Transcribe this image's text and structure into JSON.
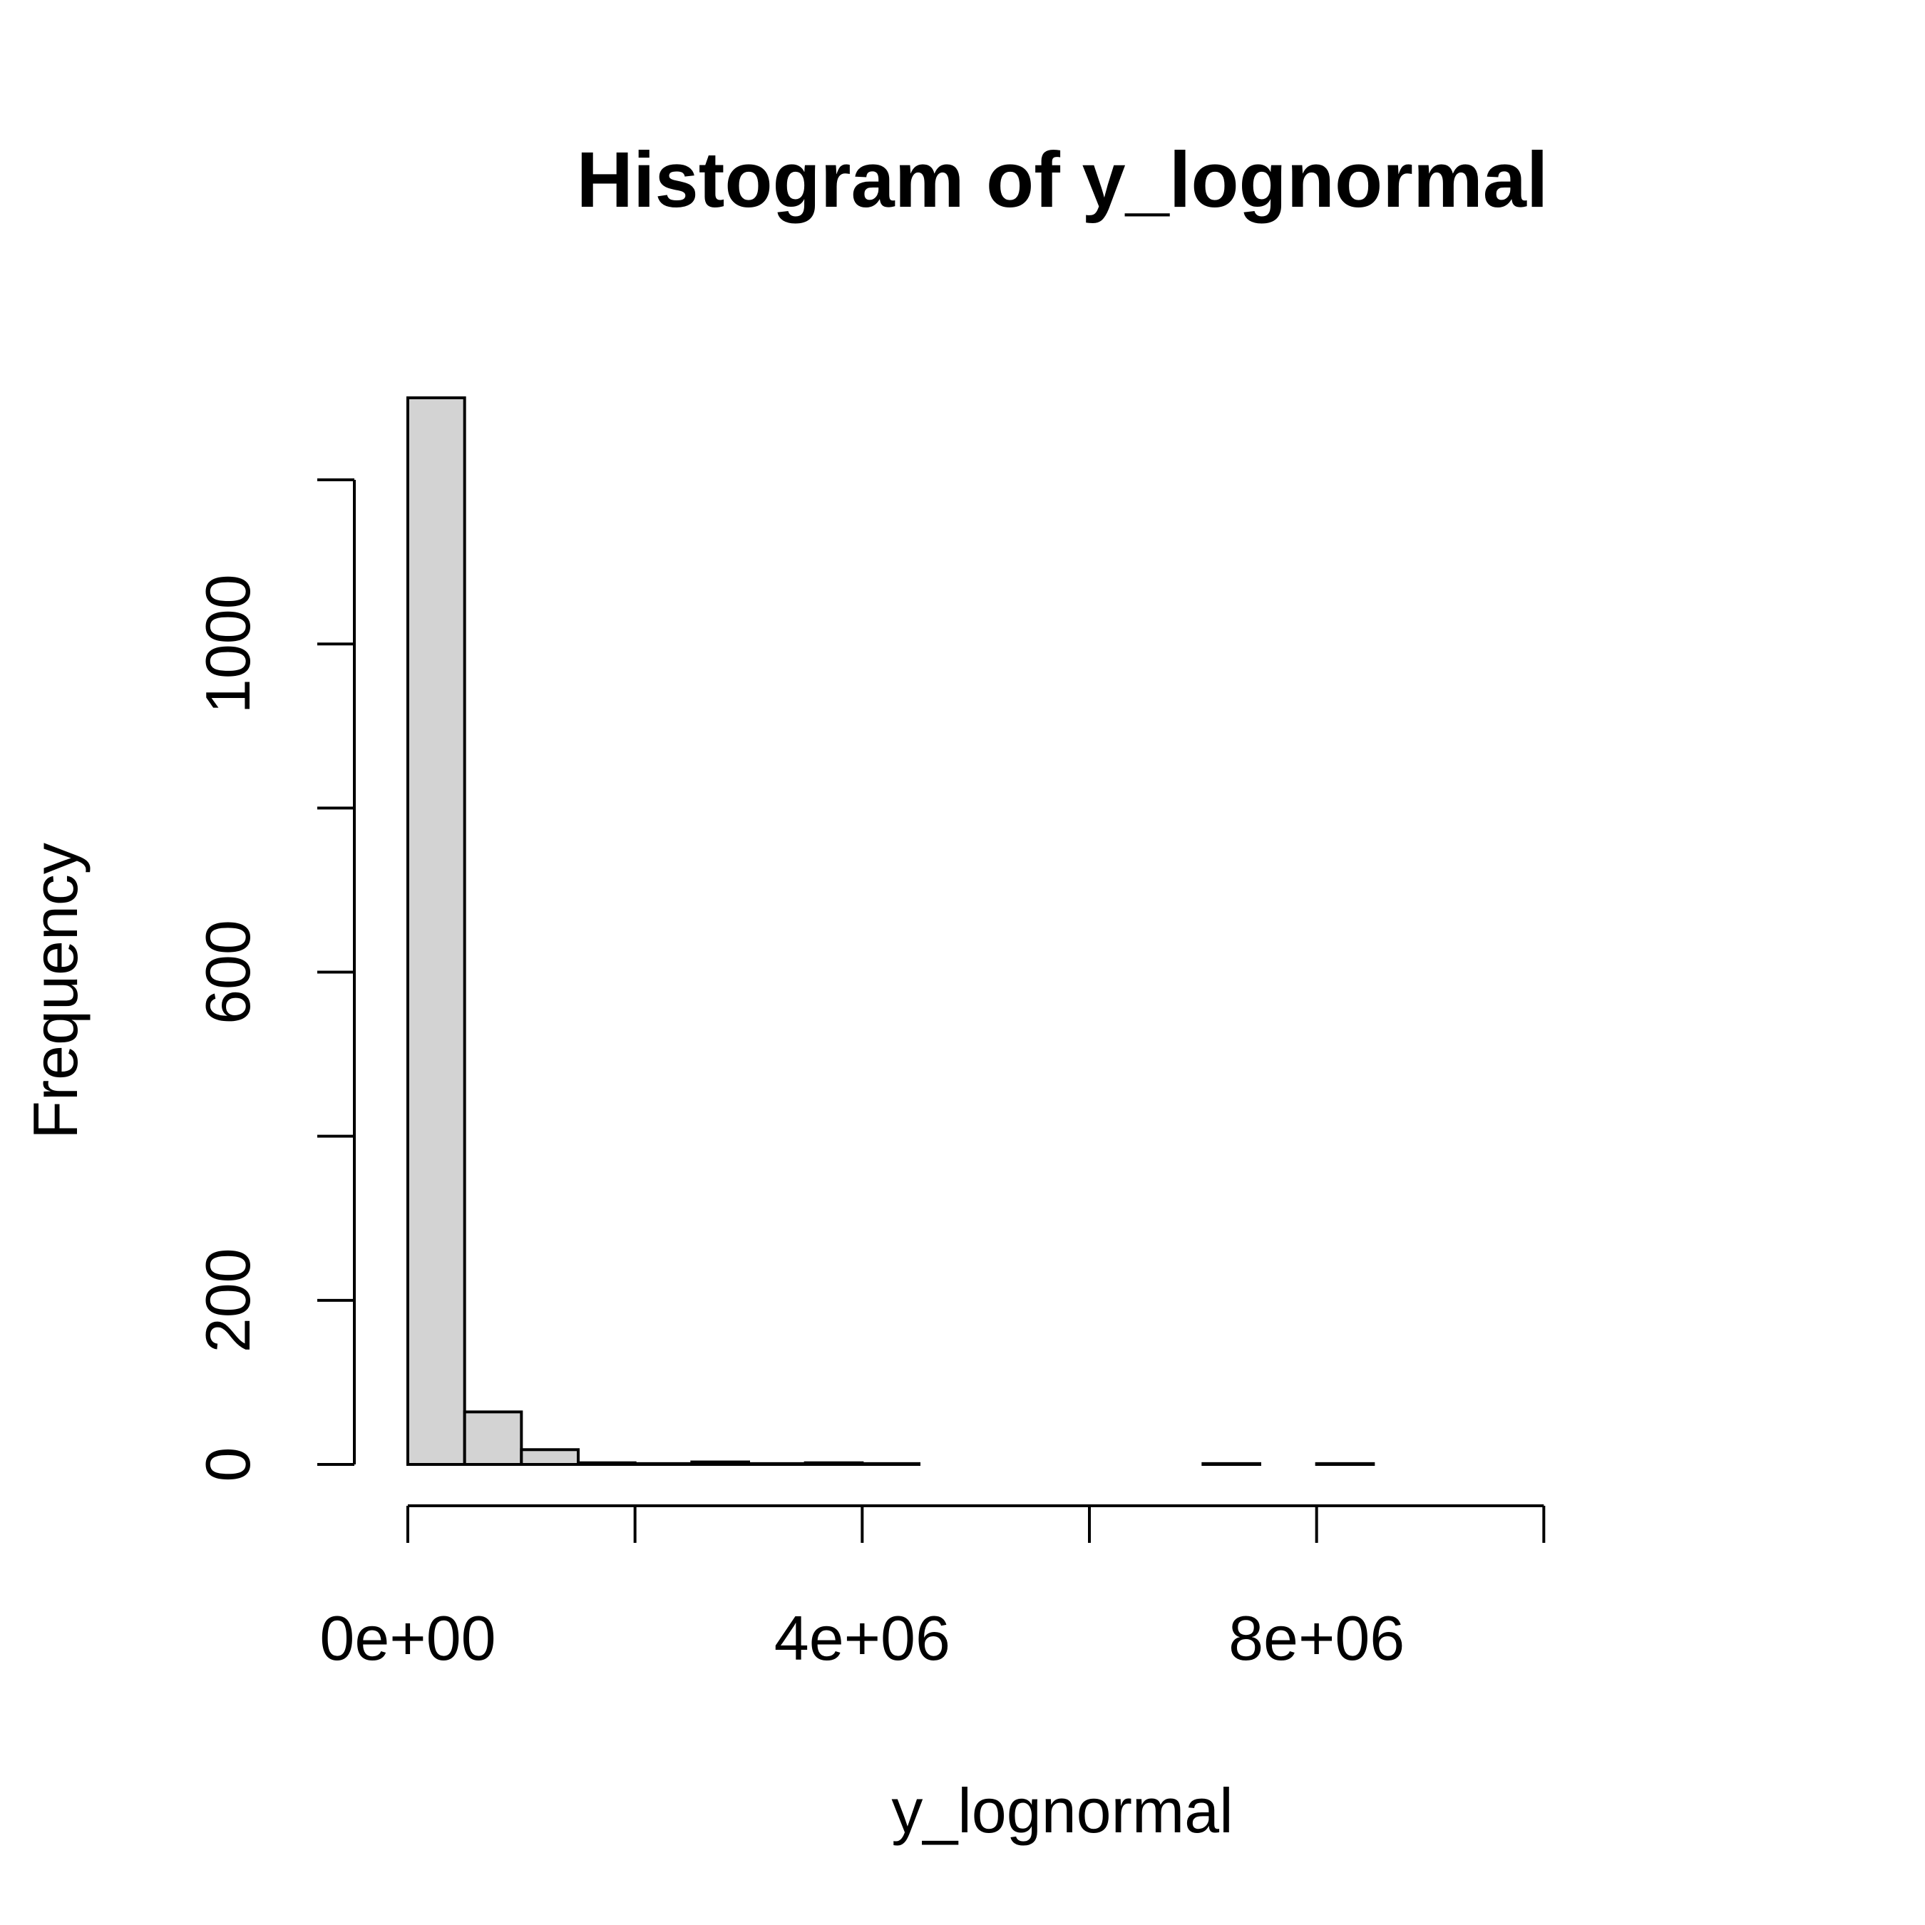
{
  "chart_data": {
    "type": "bar",
    "title": "Histogram of y_lognormal",
    "xlabel": "y_lognormal",
    "ylabel": "Frequency",
    "bin_width": 500000,
    "bins_start": 0,
    "values": [
      1300,
      64,
      18,
      2,
      1,
      3,
      1,
      2,
      1,
      0,
      0,
      0,
      0,
      0,
      1,
      0,
      1,
      0,
      0,
      0,
      0,
      0,
      0
    ],
    "x_ticks": [
      0,
      2000000,
      4000000,
      6000000,
      8000000,
      10000000
    ],
    "x_tick_labels": [
      "0e+00",
      "",
      "4e+06",
      "",
      "8e+06",
      ""
    ],
    "y_ticks": [
      0,
      200,
      400,
      600,
      800,
      1000,
      1200
    ],
    "y_tick_labels": [
      "0",
      "200",
      "",
      "600",
      "",
      "1000",
      ""
    ],
    "xlim": [
      0,
      11500000
    ],
    "ylim": [
      0,
      1300
    ],
    "bar_fill": "#d3d3d3",
    "bar_stroke": "#000000",
    "grid": false,
    "legend": "none"
  }
}
